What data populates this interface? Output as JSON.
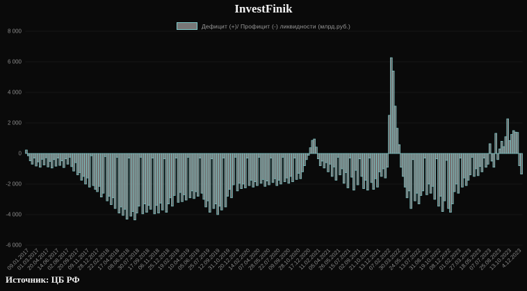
{
  "title": "InvestFinik",
  "source": "Источник: ЦБ РФ",
  "colors": {
    "background": "#0a0a0a",
    "bar_fill": "#8b8b8b",
    "bar_fill_opacity": 0.8,
    "bar_stroke": "#7fcdcd",
    "axis_text": "#8c8c8c",
    "grid": "#161616",
    "zero_line": "#1e1e1e",
    "title_text": "#f2f2f2",
    "legend_text": "#9a9a9a",
    "source_text": "#efefef"
  },
  "chart_data": {
    "type": "bar",
    "title": "InvestFinik",
    "legend_label": "Дефицит (+)/ Профицит (-) ликвидности (млрд.руб.)",
    "ylabel": "",
    "xlabel": "",
    "ylim": [
      -6000,
      8000
    ],
    "grid": "faint-horizontal",
    "legend_position": "top",
    "y_ticks": [
      "8 000",
      "6 000",
      "4 000",
      "2 000",
      "0",
      "-2 000",
      "-4 000",
      "-6 000"
    ],
    "y_tick_values": [
      8000,
      6000,
      4000,
      2000,
      0,
      -2000,
      -4000,
      -6000
    ],
    "x_tick_labels": [
      "09.01.2017",
      "01.03.2017",
      "20.04.2017",
      "14.06.2017",
      "02.08.2017",
      "20.09.2017",
      "09.11.2017",
      "28.12.2017",
      "22.02.2018",
      "17.04.2018",
      "08.06.2018",
      "30.07.2018",
      "17.09.2018",
      "06.11.2018",
      "25.12.2018",
      "19.02.2019",
      "10.04.2019",
      "05.06.2019",
      "25.07.2019",
      "12.09.2019",
      "31.10.2019",
      "20.12.2019",
      "14.02.2020",
      "07.04.2020",
      "28.05.2020",
      "22.07.2020",
      "09.09.2020",
      "28.10.2020",
      "17.12.2020",
      "11.02.2021",
      "05.04.2021",
      "26.05.2021",
      "15.07.2021",
      "02.09.2021",
      "21.10.2021",
      "13.12.2021",
      "07.02.2022",
      "30.03.2022",
      "24.05.2022",
      "13.07.2022",
      "31.08.2022",
      "19.10.2022",
      "08.12.2022",
      "01.02.2023",
      "27.03.2023",
      "18.05.2023",
      "07.07.2023",
      "25.08.2023",
      "13.10.2023",
      "4.12.2023"
    ],
    "values": [
      230,
      -150,
      -480,
      -700,
      -300,
      -820,
      -550,
      -900,
      -380,
      -750,
      -280,
      -880,
      -520,
      -950,
      -400,
      -830,
      -300,
      -780,
      -480,
      -920,
      -350,
      -700,
      -250,
      -860,
      -1150,
      -600,
      -1400,
      -1250,
      -1750,
      -1500,
      -2000,
      -1600,
      -2200,
      -150,
      -2100,
      -2350,
      -2500,
      -2150,
      -2850,
      -2600,
      -200,
      -3100,
      -2800,
      -3350,
      -2900,
      -3600,
      -250,
      -3900,
      -3500,
      -4050,
      -3650,
      -4300,
      -300,
      -4100,
      -3800,
      -4350,
      -3900,
      -3450,
      -250,
      -3950,
      -3300,
      -3850,
      -3400,
      -3650,
      -300,
      -3950,
      -3400,
      -3900,
      -3250,
      -3700,
      -350,
      -3850,
      -3300,
      -2900,
      -3450,
      -2750,
      -300,
      -3200,
      -2550,
      -3150,
      -2700,
      -3050,
      -250,
      -2900,
      -2450,
      -2950,
      -2500,
      -2800,
      -300,
      -2600,
      -3000,
      -3500,
      -3100,
      -3850,
      -350,
      -3600,
      -3300,
      -4000,
      -3450,
      -3700,
      -300,
      -3500,
      -2800,
      -2350,
      -2900,
      -2050,
      -250,
      -2450,
      -1950,
      -2300,
      -2000,
      -2250,
      -300,
      -2100,
      -1750,
      -2200,
      -1850,
      -2100,
      -250,
      -1950,
      -1700,
      -2150,
      -1800,
      -2050,
      -300,
      -1900,
      -1650,
      -2100,
      -1750,
      -2000,
      -250,
      -1850,
      -1600,
      -1950,
      -1500,
      -1850,
      -300,
      -1700,
      -1300,
      -1650,
      -1200,
      -800,
      -400,
      -120,
      380,
      860,
      950,
      420,
      -350,
      -800,
      -500,
      -950,
      -600,
      -1200,
      -700,
      -1500,
      -880,
      -1750,
      -250,
      -1400,
      -1000,
      -1950,
      -1250,
      -2250,
      -300,
      -1550,
      -2400,
      -1100,
      -2050,
      -350,
      -1500,
      -2300,
      -1750,
      -2400,
      -300,
      -1900,
      -2350,
      -1650,
      -2200,
      -1200,
      -1500,
      -1000,
      -1600,
      -900,
      2500,
      6270,
      5400,
      3100,
      1650,
      580,
      -900,
      -1500,
      -2200,
      -2900,
      -2450,
      -3600,
      -400,
      -3100,
      -2600,
      -3300,
      -2750,
      -2450,
      -300,
      -2700,
      -2000,
      -2600,
      -2150,
      -3000,
      -350,
      -3450,
      -2800,
      -3800,
      -3100,
      -450,
      -3600,
      -3850,
      -3300,
      -2500,
      -2000,
      -2600,
      -300,
      -2200,
      -1600,
      -2100,
      -1750,
      -1400,
      -250,
      -1500,
      -1000,
      -1450,
      -850,
      -1200,
      -300,
      -900,
      -700,
      640,
      -500,
      -900,
      1320,
      -400,
      300,
      800,
      450,
      1100,
      2270,
      850,
      1250,
      1500,
      1400,
      1380,
      -800,
      -1350
    ]
  }
}
